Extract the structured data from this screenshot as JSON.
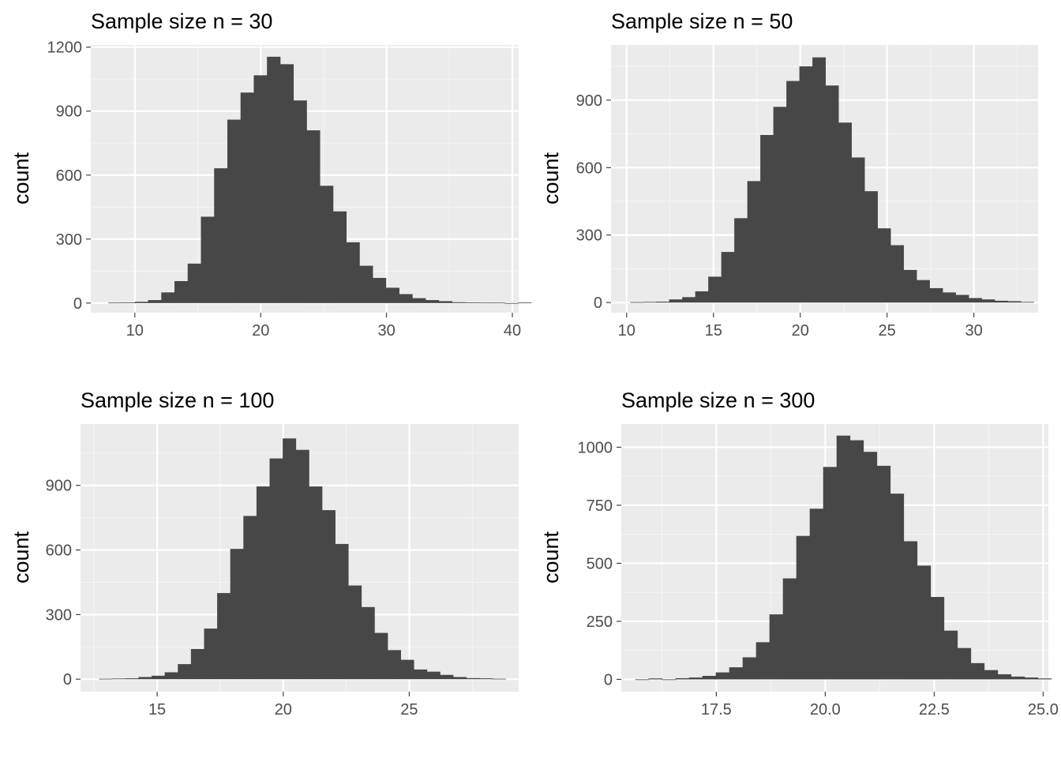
{
  "chart_data": [
    {
      "type": "bar",
      "title": "Sample size n = 30",
      "xlabel": "",
      "ylabel": "count",
      "xlim": [
        6.5,
        40.5
      ],
      "ylim": [
        -45,
        1210
      ],
      "x_ticks": [
        10,
        20,
        30,
        40
      ],
      "x_tick_labels": [
        "10",
        "20",
        "30",
        "40"
      ],
      "y_ticks": [
        0,
        300,
        600,
        900,
        1200
      ],
      "y_tick_labels": [
        "0",
        "300",
        "600",
        "900",
        "1200"
      ],
      "bin_width": 1.05,
      "bins_start": 7.9,
      "values": [
        2,
        3,
        6,
        14,
        50,
        103,
        185,
        405,
        632,
        860,
        987,
        1068,
        1155,
        1120,
        950,
        810,
        550,
        430,
        285,
        175,
        118,
        72,
        42,
        23,
        14,
        9,
        4,
        3,
        2,
        2,
        0,
        3
      ],
      "grid": true,
      "legend": "none"
    },
    {
      "type": "bar",
      "title": "Sample size n = 50",
      "xlabel": "",
      "ylabel": "count",
      "xlim": [
        9.1,
        33.7
      ],
      "ylim": [
        -45,
        1145
      ],
      "x_ticks": [
        10,
        15,
        20,
        25,
        30
      ],
      "x_tick_labels": [
        "10",
        "15",
        "20",
        "25",
        "30"
      ],
      "y_ticks": [
        0,
        300,
        600,
        900
      ],
      "y_tick_labels": [
        "0",
        "300",
        "600",
        "900"
      ],
      "bin_width": 0.75,
      "bins_start": 10.2,
      "values": [
        2,
        3,
        4,
        14,
        24,
        50,
        115,
        225,
        375,
        540,
        745,
        870,
        985,
        1050,
        1090,
        965,
        800,
        645,
        495,
        330,
        255,
        145,
        100,
        64,
        45,
        34,
        20,
        14,
        8,
        6,
        3
      ],
      "grid": true,
      "legend": "none"
    },
    {
      "type": "bar",
      "title": "Sample size n = 100",
      "xlabel": "",
      "ylabel": "count",
      "xlim": [
        11.96,
        29.34
      ],
      "ylim": [
        -58,
        1185
      ],
      "x_ticks": [
        15,
        20,
        25
      ],
      "x_tick_labels": [
        "15",
        "20",
        "25"
      ],
      "y_ticks": [
        0,
        300,
        600,
        900
      ],
      "y_tick_labels": [
        "0",
        "300",
        "600",
        "900"
      ],
      "bin_width": 0.52,
      "bins_start": 12.7,
      "values": [
        2,
        3,
        4,
        10,
        16,
        32,
        70,
        140,
        235,
        400,
        605,
        758,
        895,
        1025,
        1118,
        1065,
        895,
        785,
        628,
        435,
        335,
        215,
        135,
        90,
        45,
        35,
        20,
        10,
        5,
        4,
        2
      ],
      "grid": true,
      "legend": "none"
    },
    {
      "type": "bar",
      "title": "Sample size n = 300",
      "xlabel": "",
      "ylabel": "count",
      "xlim": [
        15.32,
        25.12
      ],
      "ylim": [
        -53,
        1100
      ],
      "x_ticks": [
        17.5,
        20.0,
        22.5,
        25.0
      ],
      "x_tick_labels": [
        "17.5",
        "20.0",
        "22.5",
        "25.0"
      ],
      "y_ticks": [
        0,
        250,
        500,
        750,
        1000
      ],
      "y_tick_labels": [
        "0",
        "250",
        "500",
        "750",
        "1000"
      ],
      "bin_width": 0.308,
      "bins_start": 15.64,
      "values": [
        0,
        4,
        0,
        5,
        8,
        15,
        30,
        52,
        95,
        160,
        280,
        435,
        618,
        735,
        915,
        1050,
        1030,
        980,
        920,
        800,
        595,
        490,
        355,
        210,
        135,
        70,
        40,
        22,
        12,
        8,
        4
      ],
      "grid": true,
      "legend": "none"
    }
  ],
  "colors": {
    "panel_background": "#ebebeb",
    "grid_major": "#ffffff",
    "grid_minor": "#f5f5f5",
    "bar_fill": "#474747",
    "tick_text": "#4d4d4d",
    "tick_mark": "#333333",
    "title_text": "#000000"
  }
}
